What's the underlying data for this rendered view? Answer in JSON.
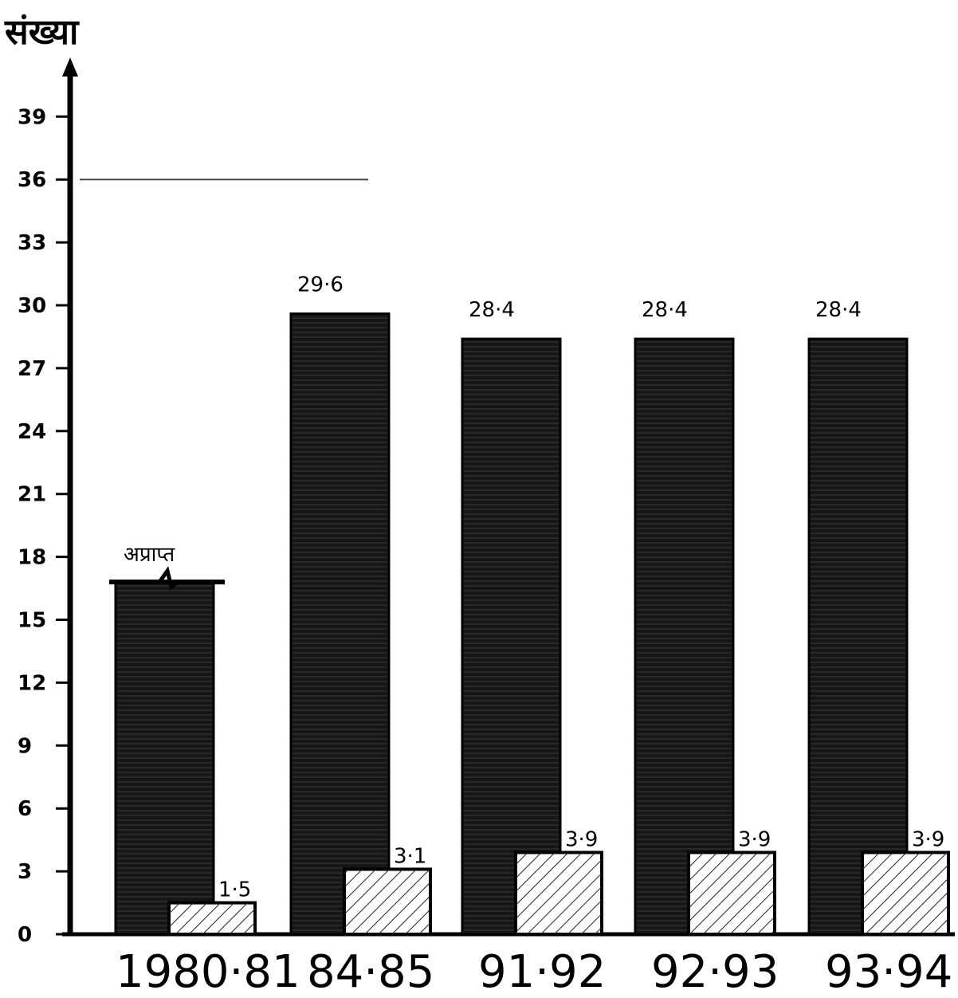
{
  "chart_data": {
    "type": "bar",
    "ylabel": "संख्या",
    "yticks": [
      0,
      3,
      6,
      9,
      12,
      15,
      18,
      21,
      24,
      27,
      30,
      33,
      36,
      39
    ],
    "ylim": [
      0,
      42
    ],
    "categories": [
      "1980·81",
      "84·85",
      "91·92",
      "92·93",
      "93·94"
    ],
    "series": [
      {
        "values": [
          null,
          29.6,
          28.4,
          28.4,
          28.4
        ],
        "labels": [
          "अप्राप्त",
          "29·6",
          "28·4",
          "28·4",
          "28·4"
        ],
        "color": "#141414",
        "fill": "solid-dark"
      },
      {
        "values": [
          1.5,
          3.1,
          3.9,
          3.9,
          3.9
        ],
        "labels": [
          "1·5",
          "3·1",
          "3·9",
          "3·9",
          "3·9"
        ],
        "color": "#ffffff",
        "fill": "hatched"
      }
    ],
    "missing_bar_cutoff": 16.8,
    "reference_line_at": 36,
    "grid": false,
    "legend": "none"
  }
}
